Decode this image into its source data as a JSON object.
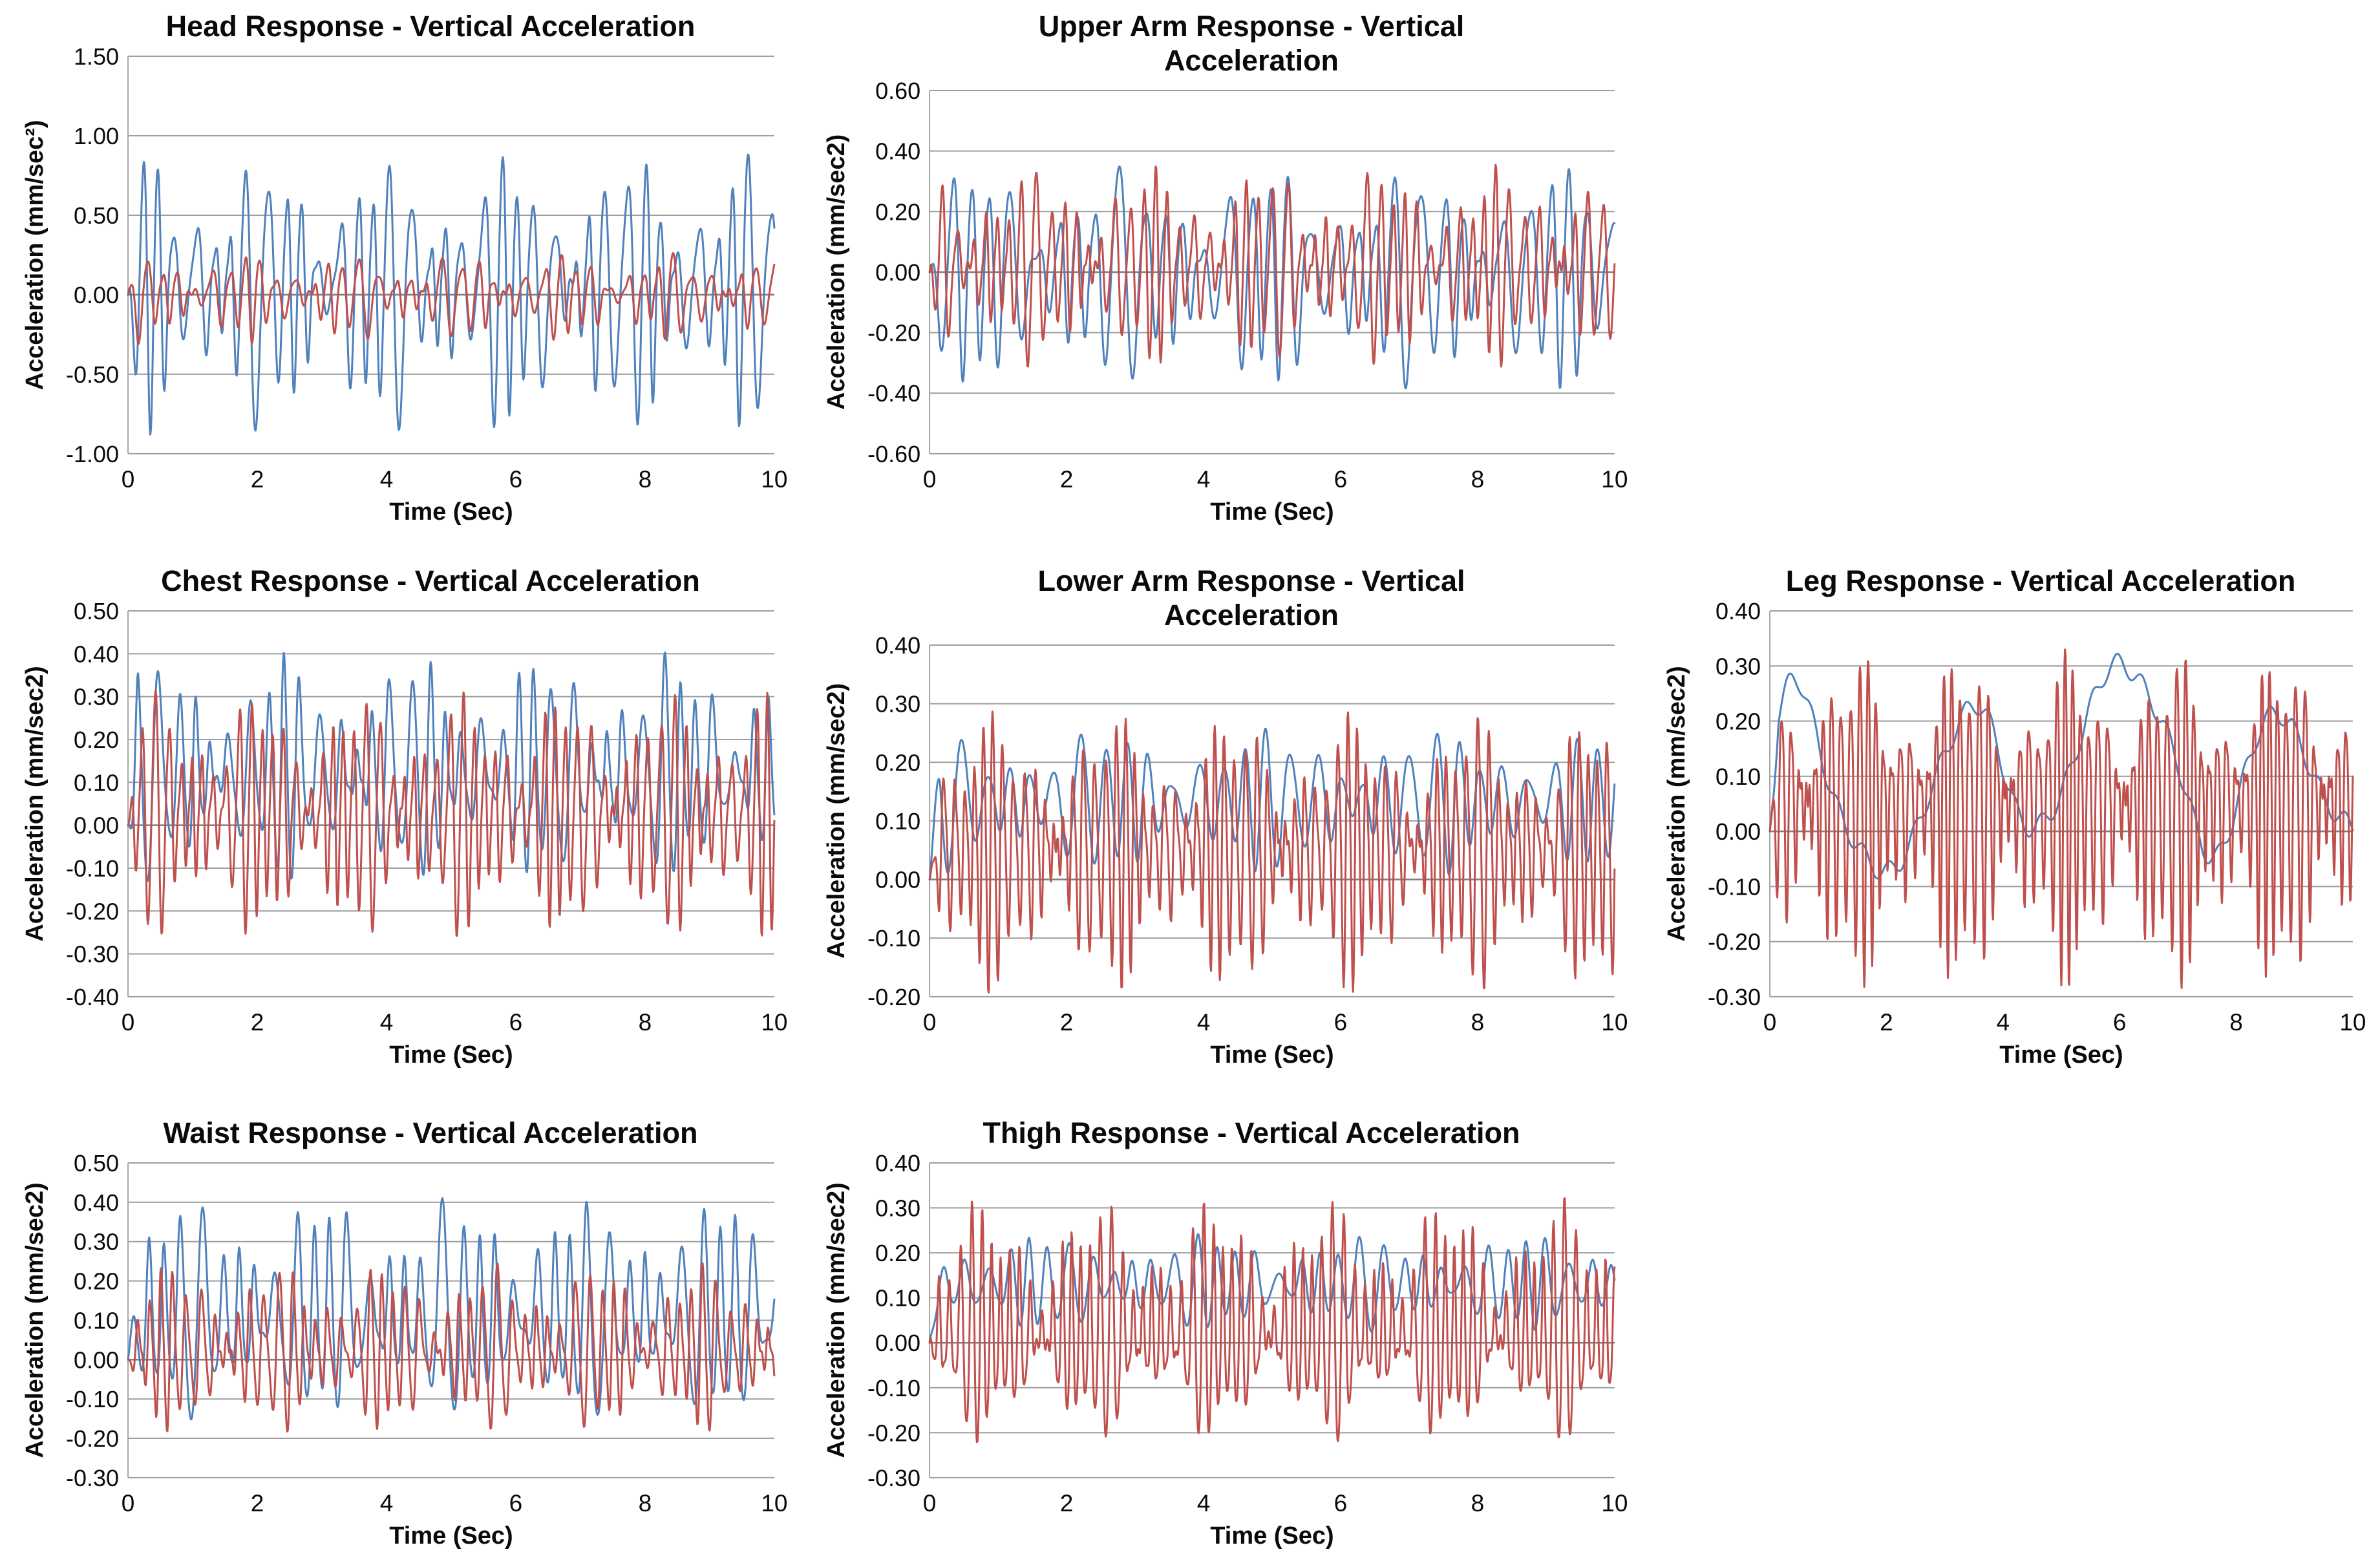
{
  "page": {
    "background": "#ffffff",
    "description_colors": {
      "series_blue": "#4F81BD",
      "series_red": "#C0504D",
      "gridline": "#9e9e9e",
      "zero_axis": "#7f7f7f",
      "axis_line": "#a6a6a6",
      "text": "#0a0a0a"
    }
  },
  "chart_data": [
    {
      "id": "head",
      "type": "line",
      "title_lines": [
        "Head Response - Vertical Acceleration"
      ],
      "ylabel": "Acceleration (mm/sec²)",
      "xlabel": "Time (Sec)",
      "xlim": [
        0,
        10
      ],
      "ylim": [
        -1.0,
        1.5
      ],
      "yticks": [
        1.5,
        1.0,
        0.5,
        0.0,
        -0.5,
        -1.0
      ],
      "ytick_labels": [
        "1.50",
        "1.00",
        "0.50",
        "0.00",
        "-0.50",
        "-1.00"
      ],
      "xticks": [
        0,
        2,
        4,
        6,
        8,
        10
      ],
      "xtick_labels": [
        "0",
        "2",
        "4",
        "6",
        "8",
        "10"
      ],
      "grid": {
        "row": 1,
        "col": 1
      },
      "legend": "none",
      "gridlines": "horizontal",
      "series": [
        {
          "name": "head-series-1",
          "color": "#4F81BD",
          "approx_range": [
            -0.75,
            0.95
          ],
          "synth": {
            "f": 3.6,
            "amp": 0.5,
            "d1": 0.5,
            "fa1": 0.53,
            "d2": 0.3,
            "fa2": 1.31,
            "wob": 1.2,
            "fw": 0.9,
            "h2": 0.15,
            "mean": 0.05,
            "seed": 101
          }
        },
        {
          "name": "head-series-2",
          "color": "#C0504D",
          "approx_range": [
            -0.4,
            0.3
          ],
          "synth": {
            "f": 3.9,
            "amp": 0.15,
            "d1": 0.55,
            "fa1": 0.61,
            "d2": 0.35,
            "fa2": 1.7,
            "wob": 1.0,
            "fw": 0.8,
            "h2": 0.2,
            "mean": 0.0,
            "seed": 202
          }
        }
      ]
    },
    {
      "id": "upper-arm",
      "type": "line",
      "title_lines": [
        "Upper Arm Response - Vertical",
        "Acceleration"
      ],
      "ylabel": "Acceleration (mm/sec2)",
      "xlabel": "Time (Sec)",
      "xlim": [
        0,
        10
      ],
      "ylim": [
        -0.6,
        0.6
      ],
      "yticks": [
        0.6,
        0.4,
        0.2,
        0.0,
        -0.2,
        -0.4,
        -0.6
      ],
      "ytick_labels": [
        "0.60",
        "0.40",
        "0.20",
        "0.00",
        "-0.20",
        "-0.40",
        "-0.60"
      ],
      "xticks": [
        0,
        2,
        4,
        6,
        8,
        10
      ],
      "xtick_labels": [
        "0",
        "2",
        "4",
        "6",
        "8",
        "10"
      ],
      "grid": {
        "row": 1,
        "col": 2
      },
      "legend": "none",
      "gridlines": "horizontal",
      "series": [
        {
          "name": "upper-arm-series-1",
          "color": "#4F81BD",
          "approx_range": [
            -0.4,
            0.37
          ],
          "synth": {
            "f": 3.2,
            "amp": 0.22,
            "d1": 0.45,
            "fa1": 0.47,
            "d2": 0.25,
            "fa2": 1.23,
            "wob": 1.3,
            "fw": 0.7,
            "h2": 0.15,
            "mean": 0.0,
            "seed": 303
          }
        },
        {
          "name": "upper-arm-series-2",
          "color": "#C0504D",
          "approx_range": [
            -0.27,
            0.42
          ],
          "synth": {
            "f": 5.2,
            "amp": 0.18,
            "d1": 0.5,
            "fa1": 0.59,
            "d2": 0.35,
            "fa2": 1.61,
            "wob": 1.1,
            "fw": 0.85,
            "h2": 0.2,
            "mean": 0.02,
            "seed": 404
          }
        }
      ]
    },
    {
      "id": "chest",
      "type": "line",
      "title_lines": [
        "Chest Response - Vertical Acceleration"
      ],
      "ylabel": "Acceleration (mm/sec2)",
      "xlabel": "Time (Sec)",
      "xlim": [
        0,
        10
      ],
      "ylim": [
        -0.4,
        0.5
      ],
      "yticks": [
        0.5,
        0.4,
        0.3,
        0.2,
        0.1,
        0.0,
        -0.1,
        -0.2,
        -0.3,
        -0.4
      ],
      "ytick_labels": [
        "0.50",
        "0.40",
        "0.30",
        "0.20",
        "0.10",
        "0.00",
        "-0.10",
        "-0.20",
        "-0.30",
        "-0.40"
      ],
      "xticks": [
        0,
        2,
        4,
        6,
        8,
        10
      ],
      "xtick_labels": [
        "0",
        "2",
        "4",
        "6",
        "8",
        "10"
      ],
      "grid": {
        "row": 2,
        "col": 1
      },
      "legend": "none",
      "gridlines": "horizontal",
      "series": [
        {
          "name": "chest-series-1",
          "color": "#4F81BD",
          "approx_range": [
            -0.13,
            0.38
          ],
          "synth": {
            "f": 3.6,
            "amp": 0.15,
            "d1": 0.5,
            "fa1": 0.5,
            "d2": 0.3,
            "fa2": 1.37,
            "wob": 1.2,
            "fw": 0.8,
            "h2": 0.15,
            "mean": 0.12,
            "seed": 505
          }
        },
        {
          "name": "chest-series-2",
          "color": "#C0504D",
          "approx_range": [
            -0.32,
            0.38
          ],
          "synth": {
            "f": 5.5,
            "amp": 0.16,
            "d1": 0.5,
            "fa1": 0.63,
            "d2": 0.3,
            "fa2": 1.49,
            "wob": 1.1,
            "fw": 0.9,
            "h2": 0.2,
            "mean": 0.03,
            "seed": 606
          }
        }
      ]
    },
    {
      "id": "lower-arm",
      "type": "line",
      "title_lines": [
        "Lower Arm Response - Vertical",
        "Acceleration"
      ],
      "ylabel": "Acceleration (mm/sec2)",
      "xlabel": "Time (Sec)",
      "xlim": [
        0,
        10
      ],
      "ylim": [
        -0.2,
        0.4
      ],
      "yticks": [
        0.4,
        0.3,
        0.2,
        0.1,
        0.0,
        -0.1,
        -0.2
      ],
      "ytick_labels": [
        "0.40",
        "0.30",
        "0.20",
        "0.10",
        "0.00",
        "-0.10",
        "-0.20"
      ],
      "xticks": [
        0,
        2,
        4,
        6,
        8,
        10
      ],
      "xtick_labels": [
        "0",
        "2",
        "4",
        "6",
        "8",
        "10"
      ],
      "grid": {
        "row": 2,
        "col": 2
      },
      "legend": "none",
      "gridlines": "horizontal",
      "series": [
        {
          "name": "lower-arm-series-1",
          "color": "#4F81BD",
          "approx_range": [
            0.04,
            0.26
          ],
          "synth": {
            "f": 2.9,
            "amp": 0.075,
            "d1": 0.45,
            "fa1": 0.41,
            "d2": 0.25,
            "fa2": 1.11,
            "wob": 0.9,
            "fw": 0.6,
            "h2": 0.05,
            "mean": 0.135,
            "seed": 707
          }
        },
        {
          "name": "lower-arm-series-2",
          "color": "#C0504D",
          "approx_range": [
            -0.16,
            0.3
          ],
          "synth": {
            "f": 6.8,
            "amp": 0.13,
            "d1": 0.5,
            "fa1": 0.57,
            "d2": 0.35,
            "fa2": 1.53,
            "wob": 1.0,
            "fw": 0.9,
            "h2": 0.2,
            "mean": 0.055,
            "seed": 808
          }
        }
      ]
    },
    {
      "id": "leg",
      "type": "line",
      "title_lines": [
        "Leg Response - Vertical Acceleration"
      ],
      "ylabel": "Acceleration (mm/sec2)",
      "xlabel": "Time (Sec)",
      "xlim": [
        0,
        10
      ],
      "ylim": [
        -0.3,
        0.4
      ],
      "yticks": [
        0.4,
        0.3,
        0.2,
        0.1,
        0.0,
        -0.1,
        -0.2,
        -0.3
      ],
      "ytick_labels": [
        "0.40",
        "0.30",
        "0.20",
        "0.10",
        "0.00",
        "-0.10",
        "-0.20",
        "-0.30"
      ],
      "xticks": [
        0,
        2,
        4,
        6,
        8,
        10
      ],
      "xtick_labels": [
        "0",
        "2",
        "4",
        "6",
        "8",
        "10"
      ],
      "grid": {
        "row": 2,
        "col": 3
      },
      "legend": "none",
      "gridlines": "horizontal",
      "series": [
        {
          "name": "leg-series-1",
          "color": "#4F81BD",
          "approx_range": [
            -0.06,
            0.29
          ],
          "synth": {
            "f": 0.36,
            "amp": 0.145,
            "d1": 0.25,
            "fa1": 0.21,
            "d2": 0.15,
            "fa2": 0.57,
            "wob": 0.6,
            "fw": 0.25,
            "h2": 0.05,
            "mean": 0.11,
            "seed": 909,
            "ripple": {
              "amp": 0.018,
              "f": 2.3
            }
          }
        },
        {
          "name": "leg-series-2",
          "color": "#C0504D",
          "approx_range": [
            -0.23,
            0.35
          ],
          "synth": {
            "f": 6.8,
            "amp": 0.17,
            "d1": 0.5,
            "fa1": 0.55,
            "d2": 0.35,
            "fa2": 1.47,
            "wob": 1.0,
            "fw": 0.9,
            "h2": 0.2,
            "mean": 0.05,
            "seed": 1010
          }
        }
      ]
    },
    {
      "id": "waist",
      "type": "line",
      "title_lines": [
        "Waist Response - Vertical Acceleration"
      ],
      "ylabel": "Acceleration (mm/sec2)",
      "xlabel": "Time (Sec)",
      "xlim": [
        0,
        10
      ],
      "ylim": [
        -0.3,
        0.5
      ],
      "yticks": [
        0.5,
        0.4,
        0.3,
        0.2,
        0.1,
        0.0,
        -0.1,
        -0.2,
        -0.3
      ],
      "ytick_labels": [
        "0.50",
        "0.40",
        "0.30",
        "0.20",
        "0.10",
        "0.00",
        "-0.10",
        "-0.20",
        "-0.30"
      ],
      "xticks": [
        0,
        2,
        4,
        6,
        8,
        10
      ],
      "xtick_labels": [
        "0",
        "2",
        "4",
        "6",
        "8",
        "10"
      ],
      "grid": {
        "row": 3,
        "col": 1
      },
      "legend": "none",
      "gridlines": "horizontal",
      "series": [
        {
          "name": "waist-series-1",
          "color": "#4F81BD",
          "approx_range": [
            -0.18,
            0.41
          ],
          "synth": {
            "f": 3.5,
            "amp": 0.17,
            "d1": 0.45,
            "fa1": 0.49,
            "d2": 0.25,
            "fa2": 1.29,
            "wob": 1.2,
            "fw": 0.8,
            "h2": 0.15,
            "mean": 0.11,
            "seed": 1111
          }
        },
        {
          "name": "waist-series-2",
          "color": "#C0504D",
          "approx_range": [
            -0.19,
            0.24
          ],
          "synth": {
            "f": 5.0,
            "amp": 0.12,
            "d1": 0.5,
            "fa1": 0.61,
            "d2": 0.3,
            "fa2": 1.55,
            "wob": 1.1,
            "fw": 0.85,
            "h2": 0.2,
            "mean": 0.025,
            "seed": 1212
          }
        }
      ]
    },
    {
      "id": "thigh",
      "type": "line",
      "title_lines": [
        "Thigh Response - Vertical Acceleration"
      ],
      "ylabel": "Acceleration (mm/sec2)",
      "xlabel": "Time (Sec)",
      "xlim": [
        0,
        10
      ],
      "ylim": [
        -0.3,
        0.4
      ],
      "yticks": [
        0.4,
        0.3,
        0.2,
        0.1,
        0.0,
        -0.1,
        -0.2,
        -0.3
      ],
      "ytick_labels": [
        "0.40",
        "0.30",
        "0.20",
        "0.10",
        "0.00",
        "-0.10",
        "-0.20",
        "-0.30"
      ],
      "xticks": [
        0,
        2,
        4,
        6,
        8,
        10
      ],
      "xtick_labels": [
        "0",
        "2",
        "4",
        "6",
        "8",
        "10"
      ],
      "grid": {
        "row": 3,
        "col": 2
      },
      "legend": "none",
      "gridlines": "horizontal",
      "series": [
        {
          "name": "thigh-series-1",
          "color": "#4F81BD",
          "approx_range": [
            0.0,
            0.26
          ],
          "synth": {
            "f": 3.3,
            "amp": 0.065,
            "d1": 0.45,
            "fa1": 0.43,
            "d2": 0.25,
            "fa2": 1.19,
            "wob": 0.9,
            "fw": 0.7,
            "h2": 0.05,
            "mean": 0.13,
            "seed": 1313
          }
        },
        {
          "name": "thigh-series-2",
          "color": "#C0504D",
          "approx_range": [
            -0.25,
            0.28
          ],
          "synth": {
            "f": 6.8,
            "amp": 0.15,
            "d1": 0.5,
            "fa1": 0.59,
            "d2": 0.35,
            "fa2": 1.51,
            "wob": 1.0,
            "fw": 0.9,
            "h2": 0.2,
            "mean": 0.02,
            "seed": 1414
          }
        }
      ]
    }
  ]
}
